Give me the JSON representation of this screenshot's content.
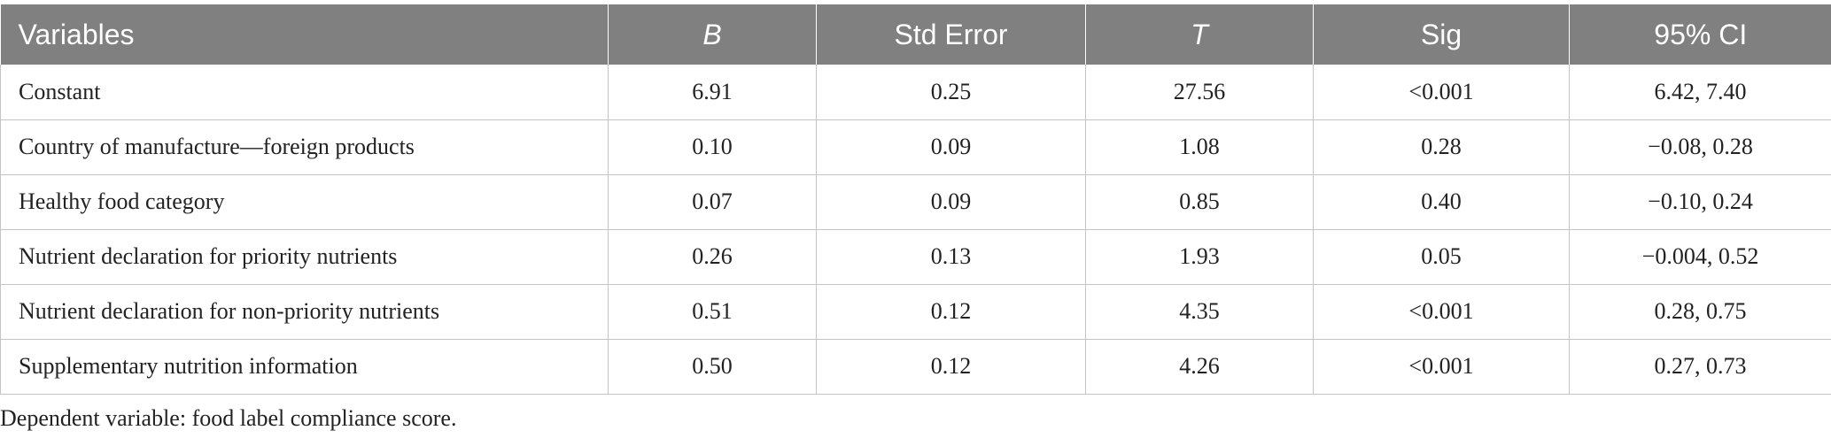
{
  "table": {
    "headers": [
      "Variables",
      "B",
      "Std Error",
      "T",
      "Sig",
      "95% CI"
    ],
    "rows": [
      [
        "Constant",
        "6.91",
        "0.25",
        "27.56",
        "<0.001",
        "6.42, 7.40"
      ],
      [
        "Country of manufacture—foreign products",
        "0.10",
        "0.09",
        "1.08",
        "0.28",
        "−0.08, 0.28"
      ],
      [
        "Healthy food category",
        "0.07",
        "0.09",
        "0.85",
        "0.40",
        "−0.10, 0.24"
      ],
      [
        "Nutrient declaration for priority nutrients",
        "0.26",
        "0.13",
        "1.93",
        "0.05",
        "−0.004, 0.52"
      ],
      [
        "Nutrient declaration for non-priority nutrients",
        "0.51",
        "0.12",
        "4.35",
        "<0.001",
        "0.28, 0.75"
      ],
      [
        "Supplementary nutrition information",
        "0.50",
        "0.12",
        "4.26",
        "<0.001",
        "0.27, 0.73"
      ]
    ]
  },
  "footnote": "Dependent variable: food label compliance score.",
  "colors": {
    "header_bg": "#808080",
    "header_text": "#ffffff",
    "grid": "#c4c4c4",
    "body_text": "#222222"
  }
}
